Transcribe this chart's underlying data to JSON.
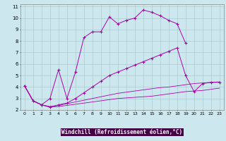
{
  "xlabel": "Windchill (Refroidissement éolien,°C)",
  "bg_color": "#cce8ee",
  "grid_color": "#aaccd4",
  "line_color": "#aa00aa",
  "xlabel_bg": "#440044",
  "xlabel_fg": "#ffffff",
  "xlim": [
    -0.5,
    23.5
  ],
  "ylim": [
    2.0,
    11.2
  ],
  "xtick_labels": [
    "0",
    "1",
    "2",
    "3",
    "4",
    "5",
    "6",
    "7",
    "8",
    "9",
    "10",
    "11",
    "12",
    "13",
    "14",
    "15",
    "16",
    "17",
    "18",
    "19",
    "20",
    "21",
    "22",
    "23"
  ],
  "ytick_labels": [
    "2",
    "3",
    "4",
    "5",
    "6",
    "7",
    "8",
    "9",
    "10",
    "11"
  ],
  "series": [
    {
      "x": [
        0,
        1,
        2,
        3,
        4,
        5,
        6,
        7,
        8,
        9,
        10,
        11,
        12,
        13,
        14,
        15,
        16,
        17,
        18,
        19
      ],
      "y": [
        4.1,
        2.8,
        2.45,
        3.0,
        5.5,
        3.0,
        5.3,
        8.3,
        8.8,
        8.8,
        10.1,
        9.5,
        9.8,
        10.0,
        10.7,
        10.5,
        10.2,
        9.8,
        9.5,
        7.8
      ],
      "marker": "+"
    },
    {
      "x": [
        0,
        1,
        2,
        3,
        4,
        5,
        6,
        7,
        8,
        9,
        10,
        11,
        12,
        13,
        14,
        15,
        16,
        17,
        18,
        19,
        20,
        21,
        22,
        23
      ],
      "y": [
        4.1,
        2.8,
        2.45,
        2.25,
        2.45,
        2.6,
        3.0,
        3.5,
        4.0,
        4.5,
        5.0,
        5.3,
        5.6,
        5.9,
        6.2,
        6.5,
        6.8,
        7.1,
        7.4,
        5.0,
        3.6,
        4.3,
        4.4,
        4.4
      ],
      "marker": "+"
    },
    {
      "x": [
        0,
        1,
        2,
        3,
        4,
        5,
        6,
        7,
        8,
        9,
        10,
        11,
        12,
        13,
        14,
        15,
        16,
        17,
        18,
        19,
        20,
        21,
        22,
        23
      ],
      "y": [
        4.1,
        2.8,
        2.45,
        2.3,
        2.4,
        2.55,
        2.7,
        2.85,
        3.0,
        3.15,
        3.3,
        3.45,
        3.55,
        3.65,
        3.75,
        3.85,
        3.95,
        4.0,
        4.1,
        4.2,
        4.3,
        4.35,
        4.4,
        4.45
      ],
      "marker": null
    },
    {
      "x": [
        0,
        1,
        2,
        3,
        4,
        5,
        6,
        7,
        8,
        9,
        10,
        11,
        12,
        13,
        14,
        15,
        16,
        17,
        18,
        19,
        20,
        21,
        22,
        23
      ],
      "y": [
        4.1,
        2.8,
        2.45,
        2.25,
        2.3,
        2.4,
        2.5,
        2.6,
        2.7,
        2.8,
        2.9,
        3.0,
        3.05,
        3.1,
        3.15,
        3.2,
        3.3,
        3.4,
        3.5,
        3.6,
        3.65,
        3.7,
        3.8,
        3.9
      ],
      "marker": null
    }
  ]
}
